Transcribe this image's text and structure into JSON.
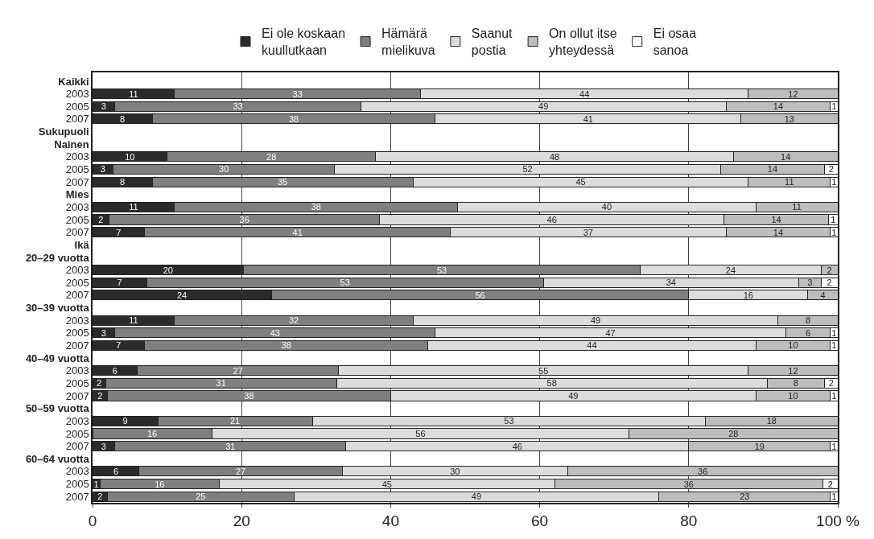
{
  "chart_data": {
    "type": "bar",
    "orientation": "horizontal",
    "stacked": true,
    "categories": [
      "Kaikki",
      "2003",
      "2005",
      "2007",
      "Sukupuoli",
      "Nainen",
      "2003",
      "2005",
      "2007",
      "Mies",
      "2003",
      "2005",
      "2007",
      "Ikä",
      "20–29 vuotta",
      "2003",
      "2005",
      "2007",
      "30–39 vuotta",
      "2003",
      "2005",
      "2007",
      "40–49 vuotta",
      "2003",
      "2005",
      "2007",
      "50–59 vuotta",
      "2003",
      "2005",
      "2007",
      "60–64 vuotta",
      "2003",
      "2005",
      "2007"
    ],
    "series": [
      {
        "name": "Ei ole koskaan kuullutkaan",
        "color": "#2b2b2b",
        "values": [
          null,
          11,
          3,
          8,
          null,
          null,
          10,
          2.75,
          8,
          null,
          11,
          2.25,
          7,
          null,
          null,
          20.25,
          7.25,
          24,
          null,
          11,
          3,
          7,
          null,
          6,
          1.75,
          2,
          null,
          8.75,
          null,
          3,
          null,
          6.25,
          1,
          2
        ],
        "value_labels": [
          null,
          "11",
          "3",
          "8",
          null,
          null,
          "10",
          "3",
          "8",
          null,
          "11",
          "2",
          "7",
          null,
          null,
          "20",
          "7",
          "24",
          null,
          "11",
          "3",
          "7",
          null,
          "6",
          "2",
          "2",
          null,
          "9",
          null,
          "3",
          null,
          "6",
          "1",
          "2"
        ]
      },
      {
        "name": "Hämärä mielikuva",
        "color": "#7f7f7f",
        "values": [
          null,
          33,
          33,
          38,
          null,
          null,
          28,
          29.75,
          35,
          null,
          38,
          36.25,
          41,
          null,
          null,
          53.25,
          53.25,
          56,
          null,
          32,
          43,
          38,
          null,
          27,
          31,
          38,
          null,
          20.75,
          16,
          31,
          null,
          27.25,
          16,
          25
        ],
        "value_labels": [
          null,
          "33",
          "33",
          "38",
          null,
          null,
          "28",
          "30",
          "35",
          null,
          "38",
          "36",
          "41",
          null,
          null,
          "53",
          "53",
          "56",
          null,
          "32",
          "43",
          "38",
          null,
          "27",
          "31",
          "38",
          null,
          "21",
          "16",
          "31",
          null,
          "27",
          "16",
          "25"
        ]
      },
      {
        "name": "Saanut postia",
        "color": "#dcdcdc",
        "values": [
          null,
          44,
          49,
          41,
          null,
          null,
          48,
          51.75,
          45,
          null,
          40,
          46.25,
          37,
          null,
          null,
          24.25,
          34.25,
          16,
          null,
          49,
          47,
          44,
          null,
          55,
          57.75,
          49,
          null,
          52.75,
          56,
          46,
          null,
          30.25,
          45,
          49
        ],
        "value_labels": [
          null,
          "44",
          "49",
          "41",
          null,
          null,
          "48",
          "52",
          "45",
          null,
          "40",
          "46",
          "37",
          null,
          null,
          "24",
          "34",
          "16",
          null,
          "49",
          "47",
          "44",
          null,
          "55",
          "58",
          "49",
          null,
          "53",
          "56",
          "46",
          null,
          "30",
          "45",
          "49"
        ]
      },
      {
        "name": "On ollut itse yhteydessä",
        "color": "#bdbdbd",
        "values": [
          null,
          12,
          14,
          13,
          null,
          null,
          14,
          14,
          11,
          null,
          11,
          14,
          14,
          null,
          null,
          2.25,
          3,
          4,
          null,
          8,
          6,
          10,
          null,
          12,
          7.75,
          10,
          null,
          17.75,
          28,
          19,
          null,
          36.25,
          36,
          23
        ],
        "value_labels": [
          null,
          "12",
          "14",
          "13",
          null,
          null,
          "14",
          "14",
          "11",
          null,
          "11",
          "14",
          "14",
          null,
          null,
          "2",
          "3",
          "4",
          null,
          "8",
          "6",
          "10",
          null,
          "12",
          "8",
          "10",
          null,
          "18",
          "28",
          "19",
          null,
          "36",
          "36",
          "23"
        ]
      },
      {
        "name": "Ei osaa sanoa",
        "color": "#ffffff",
        "values": [
          null,
          null,
          1,
          null,
          null,
          null,
          null,
          1.75,
          1,
          null,
          null,
          1.25,
          1,
          null,
          null,
          null,
          2.25,
          null,
          null,
          null,
          1,
          1,
          null,
          null,
          1.75,
          1,
          null,
          null,
          null,
          1,
          null,
          null,
          2,
          1
        ],
        "value_labels": [
          null,
          null,
          "1",
          null,
          null,
          null,
          null,
          "2",
          "1",
          null,
          null,
          "1",
          "1",
          null,
          null,
          null,
          "2",
          null,
          null,
          null,
          "1",
          "1",
          null,
          null,
          "2",
          "1",
          null,
          null,
          null,
          "1",
          null,
          null,
          "2",
          "1"
        ]
      }
    ],
    "xlim": [
      0,
      100
    ],
    "xticks": [
      0,
      20,
      40,
      60,
      80,
      {
        "value": 100,
        "label": "100 %"
      }
    ],
    "grid": "x",
    "legend": "top"
  }
}
